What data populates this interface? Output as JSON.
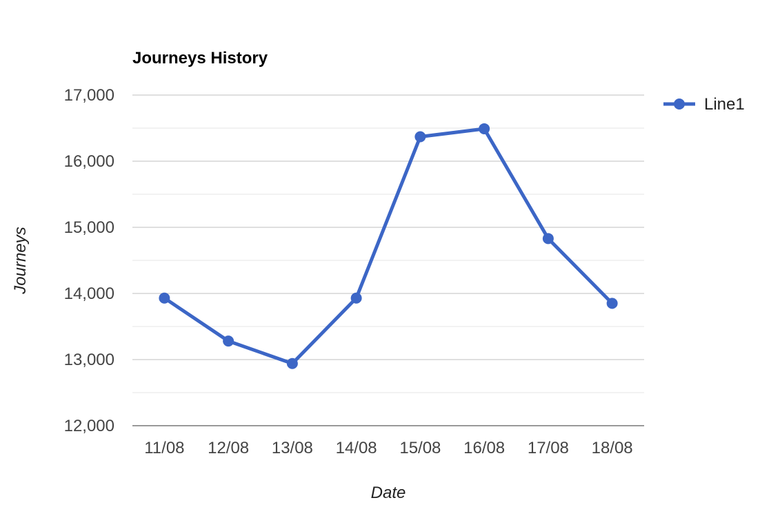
{
  "chart_data": {
    "type": "line",
    "title": "Journeys History",
    "xlabel": "Date",
    "ylabel": "Journeys",
    "categories": [
      "11/08",
      "12/08",
      "13/08",
      "14/08",
      "15/08",
      "16/08",
      "17/08",
      "18/08"
    ],
    "series": [
      {
        "name": "Line1",
        "color": "#3c66c6",
        "values": [
          13930,
          13280,
          12940,
          13930,
          16370,
          16490,
          14830,
          13850
        ]
      }
    ],
    "ylim": [
      12000,
      17000
    ],
    "yticks": [
      12000,
      13000,
      14000,
      15000,
      16000,
      17000
    ],
    "ytick_labels": [
      "12,000",
      "13,000",
      "14,000",
      "15,000",
      "16,000",
      "17,000"
    ],
    "minor_gridlines": true,
    "grid": true,
    "legend_position": "right"
  }
}
